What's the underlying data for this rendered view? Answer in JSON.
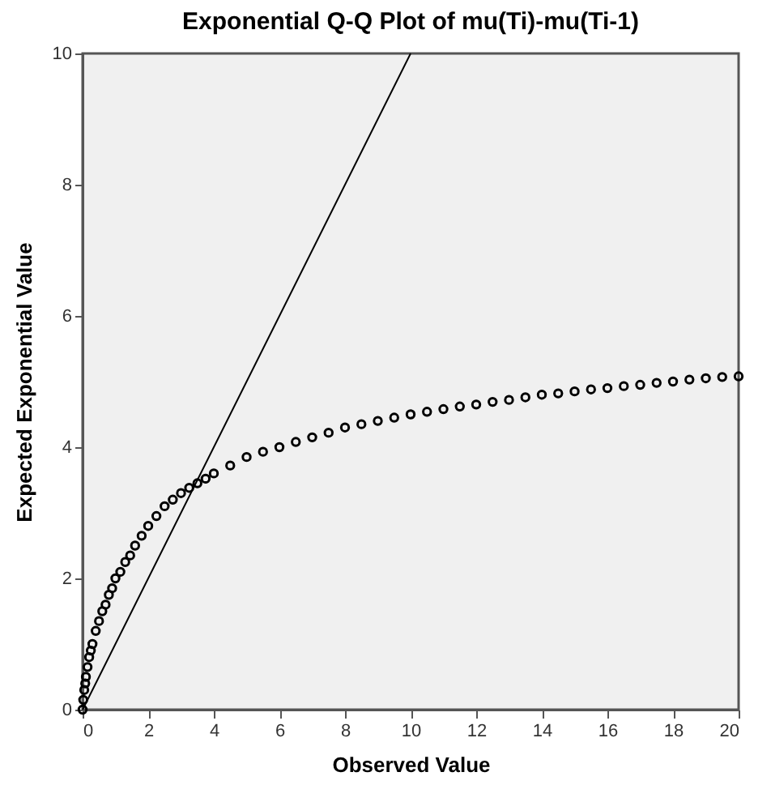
{
  "chart_data": {
    "type": "scatter",
    "title": "Exponential Q-Q Plot of mu(Ti)-mu(Ti-1)",
    "xlabel": "Observed Value",
    "ylabel": "Expected Exponential Value",
    "xlim": [
      0,
      20
    ],
    "ylim": [
      0,
      10
    ],
    "xticks": [
      0,
      2,
      4,
      6,
      8,
      10,
      12,
      14,
      16,
      18,
      20
    ],
    "yticks": [
      0,
      2,
      4,
      6,
      8,
      10
    ],
    "grid": false,
    "series": [
      {
        "color": "#000000",
        "marker": "circle",
        "x": [
          0,
          0.02,
          0.05,
          0.08,
          0.1,
          0.15,
          0.2,
          0.25,
          0.3,
          0.4,
          0.5,
          0.6,
          0.7,
          0.8,
          0.9,
          1,
          1.15,
          1.3,
          1.45,
          1.6,
          1.8,
          2,
          2.25,
          2.5,
          2.75,
          3,
          3.25,
          3.5,
          3.75,
          4,
          4.5,
          5,
          5.5,
          6,
          6.5,
          7,
          7.5,
          8,
          8.5,
          9,
          9.5,
          10,
          10.5,
          11,
          11.5,
          12,
          12.5,
          13,
          13.5,
          14,
          14.5,
          15,
          15.5,
          16,
          16.5,
          17,
          17.5,
          18,
          18.5,
          19,
          19.5,
          20
        ],
        "values": [
          0,
          0.15,
          0.3,
          0.4,
          0.5,
          0.65,
          0.8,
          0.9,
          1,
          1.2,
          1.35,
          1.5,
          1.6,
          1.75,
          1.85,
          2,
          2.1,
          2.25,
          2.35,
          2.5,
          2.65,
          2.8,
          2.95,
          3.1,
          3.2,
          3.3,
          3.38,
          3.45,
          3.52,
          3.6,
          3.72,
          3.85,
          3.93,
          4,
          4.08,
          4.15,
          4.22,
          4.3,
          4.35,
          4.4,
          4.45,
          4.5,
          4.54,
          4.58,
          4.62,
          4.65,
          4.69,
          4.72,
          4.76,
          4.8,
          4.82,
          4.85,
          4.88,
          4.9,
          4.93,
          4.95,
          4.98,
          5,
          5.03,
          5.05,
          5.07,
          5.08
        ]
      },
      {
        "type": "line",
        "color": "#000000",
        "marker": "none",
        "x": [
          0,
          10
        ],
        "values": [
          0,
          10
        ]
      }
    ]
  }
}
